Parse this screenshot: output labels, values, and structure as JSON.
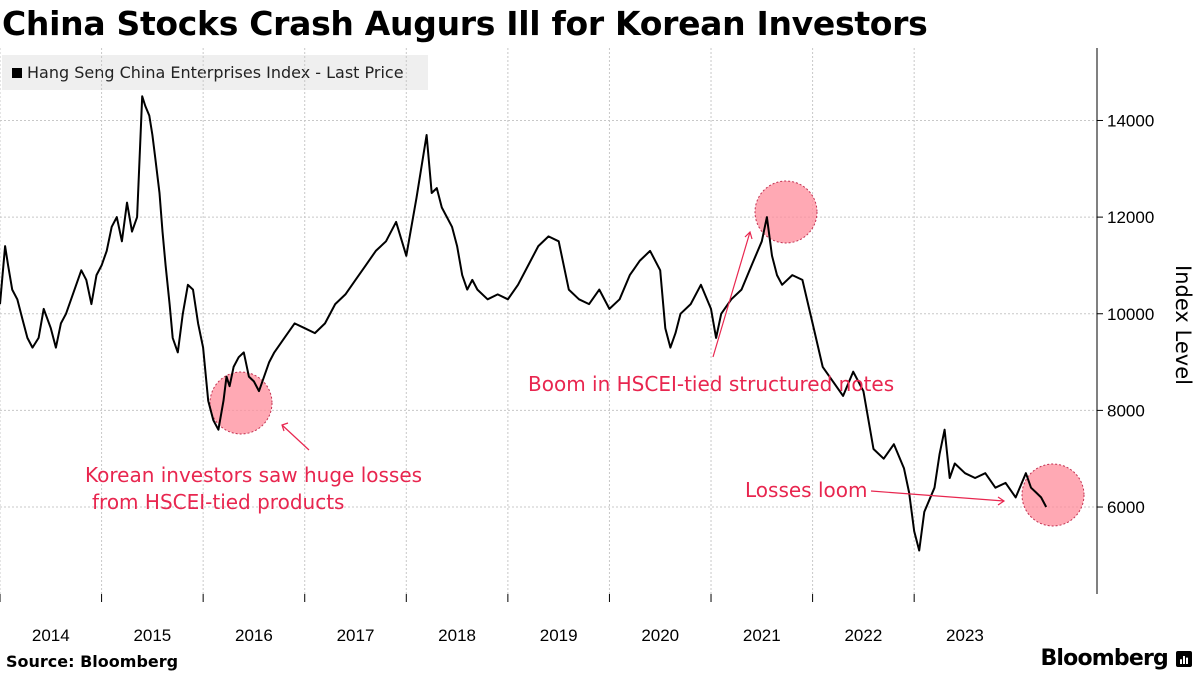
{
  "title": "China Stocks Crash Augurs Ill for Korean Investors",
  "legend": {
    "label": "Hang Seng China Enterprises Index - Last Price"
  },
  "source": "Source: Bloomberg",
  "brand": "Bloomberg",
  "chart_data": {
    "type": "line",
    "ylabel": "Index Level",
    "ylim": [
      4200,
      15500
    ],
    "yticks": [
      6000,
      8000,
      10000,
      12000,
      14000
    ],
    "xlim": [
      2013.5,
      2024.3
    ],
    "xticks": [
      2014,
      2015,
      2016,
      2017,
      2018,
      2019,
      2020,
      2021,
      2022,
      2023
    ],
    "series_color": "#000000",
    "annotation_color": "#e8264f",
    "series": [
      {
        "name": "Hang Seng China Enterprises Index - Last Price",
        "x": [
          2013.5,
          2013.55,
          2013.58,
          2013.62,
          2013.67,
          2013.72,
          2013.77,
          2013.82,
          2013.88,
          2013.93,
          2014.0,
          2014.05,
          2014.1,
          2014.15,
          2014.2,
          2014.25,
          2014.3,
          2014.35,
          2014.4,
          2014.45,
          2014.5,
          2014.55,
          2014.6,
          2014.65,
          2014.7,
          2014.75,
          2014.8,
          2014.85,
          2014.9,
          2014.93,
          2014.97,
          2015.0,
          2015.03,
          2015.07,
          2015.1,
          2015.13,
          2015.17,
          2015.2,
          2015.25,
          2015.3,
          2015.35,
          2015.4,
          2015.45,
          2015.5,
          2015.55,
          2015.6,
          2015.65,
          2015.7,
          2015.73,
          2015.76,
          2015.8,
          2015.85,
          2015.9,
          2015.95,
          2016.0,
          2016.05,
          2016.1,
          2016.15,
          2016.2,
          2016.3,
          2016.4,
          2016.5,
          2016.6,
          2016.7,
          2016.8,
          2016.9,
          2017.0,
          2017.1,
          2017.2,
          2017.3,
          2017.4,
          2017.5,
          2017.6,
          2017.7,
          2017.75,
          2017.8,
          2017.85,
          2017.9,
          2017.95,
          2018.0,
          2018.05,
          2018.1,
          2018.15,
          2018.2,
          2018.3,
          2018.4,
          2018.5,
          2018.6,
          2018.7,
          2018.8,
          2018.9,
          2019.0,
          2019.1,
          2019.2,
          2019.3,
          2019.4,
          2019.5,
          2019.6,
          2019.7,
          2019.8,
          2019.9,
          2020.0,
          2020.05,
          2020.1,
          2020.15,
          2020.2,
          2020.3,
          2020.4,
          2020.5,
          2020.55,
          2020.6,
          2020.7,
          2020.8,
          2020.9,
          2021.0,
          2021.05,
          2021.1,
          2021.15,
          2021.2,
          2021.3,
          2021.4,
          2021.5,
          2021.6,
          2021.7,
          2021.8,
          2021.9,
          2022.0,
          2022.1,
          2022.2,
          2022.3,
          2022.4,
          2022.45,
          2022.5,
          2022.55,
          2022.6,
          2022.7,
          2022.75,
          2022.8,
          2022.85,
          2022.9,
          2023.0,
          2023.1,
          2023.2,
          2023.3,
          2023.4,
          2023.5,
          2023.6,
          2023.65,
          2023.7,
          2023.75,
          2023.8
        ],
        "values": [
          10200,
          11400,
          11000,
          10500,
          10300,
          9900,
          9500,
          9300,
          9500,
          10100,
          9700,
          9300,
          9800,
          10000,
          10300,
          10600,
          10900,
          10700,
          10200,
          10800,
          11000,
          11300,
          11800,
          12000,
          11500,
          12300,
          11700,
          12000,
          14500,
          14300,
          14100,
          13700,
          13200,
          12500,
          11700,
          11000,
          10200,
          9500,
          9200,
          10000,
          10600,
          10500,
          9800,
          9300,
          8200,
          7800,
          7600,
          8200,
          8700,
          8500,
          8900,
          9100,
          9200,
          8700,
          8600,
          8400,
          8700,
          9000,
          9200,
          9500,
          9800,
          9700,
          9600,
          9800,
          10200,
          10400,
          10700,
          11000,
          11300,
          11500,
          11900,
          11200,
          12400,
          13700,
          12500,
          12600,
          12200,
          12000,
          11800,
          11400,
          10800,
          10500,
          10700,
          10500,
          10300,
          10400,
          10300,
          10600,
          11000,
          11400,
          11600,
          11500,
          10500,
          10300,
          10200,
          10500,
          10100,
          10300,
          10800,
          11100,
          11300,
          10900,
          9700,
          9300,
          9600,
          10000,
          10200,
          10600,
          10100,
          9500,
          10000,
          10300,
          10500,
          11000,
          11500,
          12000,
          11200,
          10800,
          10600,
          10800,
          10700,
          9800,
          8900,
          8600,
          8300,
          8800,
          8400,
          7200,
          7000,
          7300,
          6800,
          6300,
          5500,
          5100,
          5900,
          6400,
          7100,
          7600,
          6600,
          6900,
          6700,
          6600,
          6700,
          6400,
          6500,
          6200,
          6700,
          6400,
          6300,
          6200,
          6000
        ]
      }
    ],
    "annotations": [
      {
        "text_lines": [
          "Korean investors saw huge losses",
          "from HSCEI-tied products"
        ],
        "target": [
          2015.72,
          7700
        ]
      },
      {
        "text_lines": [
          "Boom in HSCEI-tied structured notes"
        ],
        "target": [
          2020.55,
          11600
        ]
      },
      {
        "text_lines": [
          "Losses loom"
        ],
        "target": [
          2022.75,
          6100
        ]
      }
    ]
  }
}
